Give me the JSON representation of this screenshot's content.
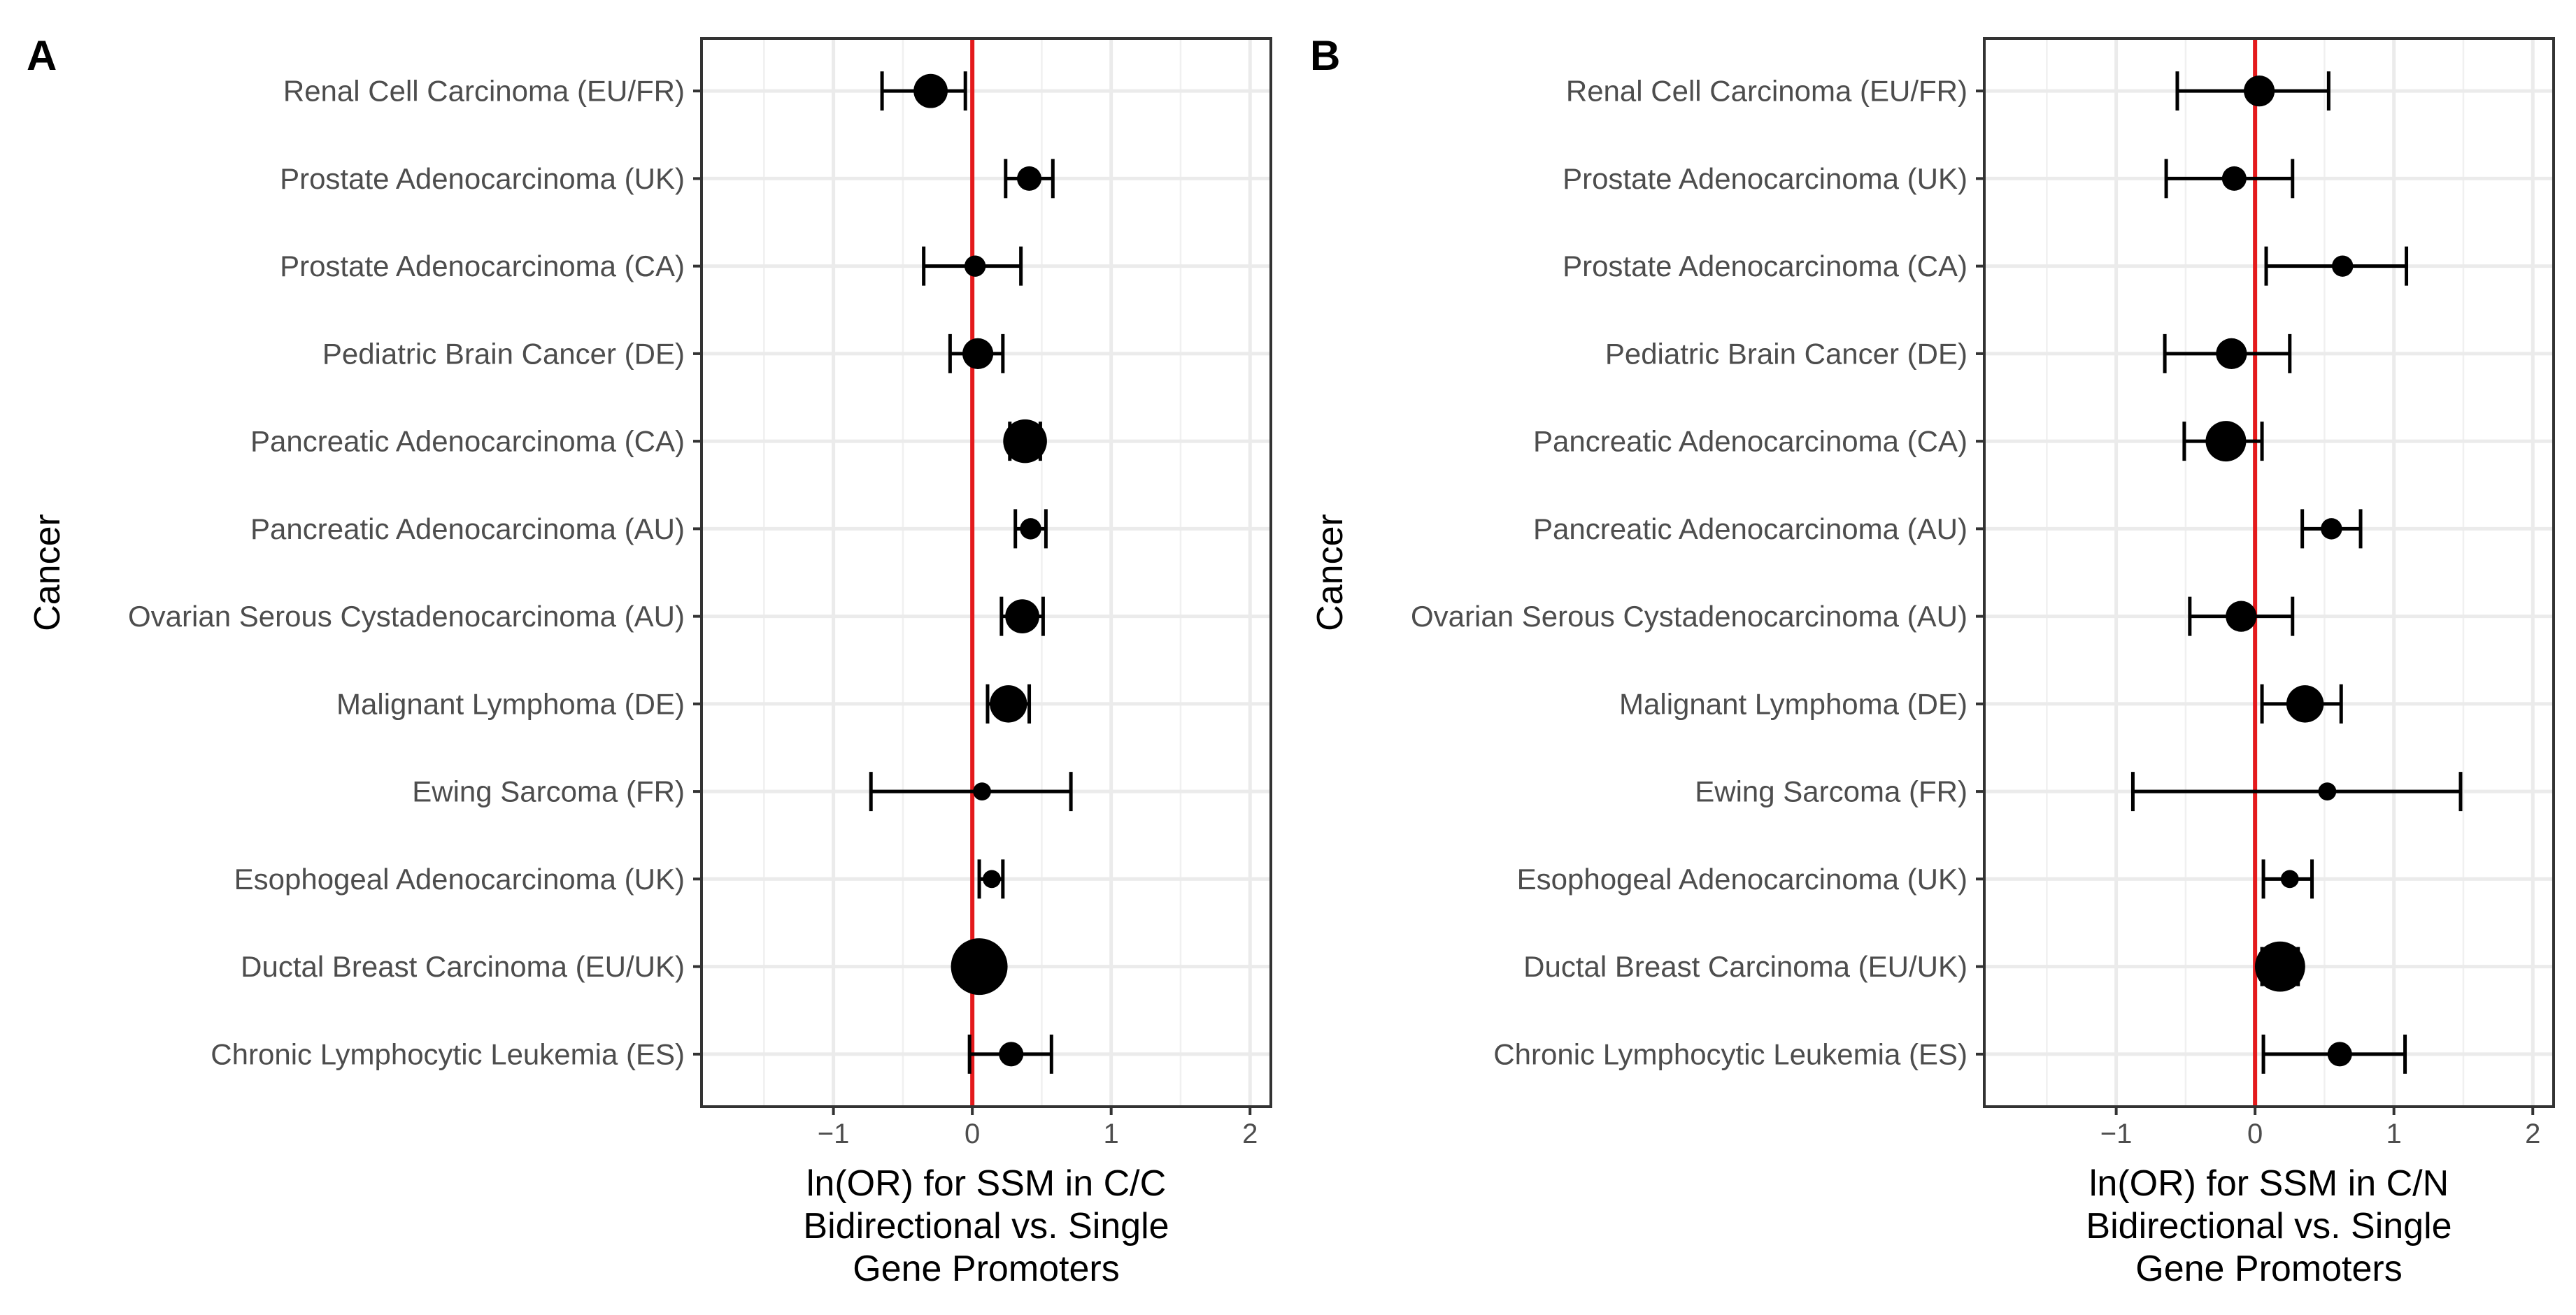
{
  "chart_data": [
    {
      "type": "scatter",
      "panel": "A",
      "xlabel": [
        "ln(OR) for SSM in C/C",
        "Bidirectional vs. Single",
        "Gene Promoters"
      ],
      "ylabel": "Cancer",
      "xlim": [
        -1.95,
        2.15
      ],
      "xticks": [
        -1,
        0,
        1,
        2
      ],
      "xtick_labels": [
        "−1",
        "0",
        "1",
        "2"
      ],
      "grid": true,
      "reference_line": {
        "x": 0,
        "color": "#e41a1c"
      },
      "categories": [
        "Renal Cell Carcinoma (EU/FR)",
        "Prostate Adenocarcinoma (UK)",
        "Prostate Adenocarcinoma (CA)",
        "Pediatric Brain Cancer (DE)",
        "Pancreatic Adenocarcinoma (CA)",
        "Pancreatic Adenocarcinoma (AU)",
        "Ovarian Serous Cystadenocarcinoma (AU)",
        "Malignant Lymphoma (DE)",
        "Ewing Sarcoma (FR)",
        "Esophogeal Adenocarcinoma (UK)",
        "Ductal Breast Carcinoma (EU/UK)",
        "Chronic Lymphocytic Leukemia (ES)"
      ],
      "estimates": [
        -0.3,
        0.41,
        0.02,
        0.04,
        0.38,
        0.42,
        0.36,
        0.26,
        0.07,
        0.14,
        0.05,
        0.28
      ],
      "ci_low": [
        -0.65,
        0.24,
        -0.35,
        -0.16,
        0.27,
        0.31,
        0.21,
        0.11,
        -0.73,
        0.05,
        -0.04,
        -0.02
      ],
      "ci_high": [
        -0.05,
        0.58,
        0.35,
        0.22,
        0.49,
        0.53,
        0.51,
        0.41,
        0.71,
        0.22,
        0.13,
        0.57
      ],
      "point_size": [
        4,
        2.5,
        2,
        3.5,
        5.5,
        2,
        4,
        4.5,
        1.5,
        1.5,
        7.5,
        2.5
      ]
    },
    {
      "type": "scatter",
      "panel": "B",
      "xlabel": [
        "ln(OR) for SSM in C/N",
        "Bidirectional vs. Single",
        "Gene Promoters"
      ],
      "ylabel": "Cancer",
      "xlim": [
        -1.95,
        2.15
      ],
      "xticks": [
        -1,
        0,
        1,
        2
      ],
      "xtick_labels": [
        "−1",
        "0",
        "1",
        "2"
      ],
      "grid": true,
      "reference_line": {
        "x": 0,
        "color": "#e41a1c"
      },
      "categories": [
        "Renal Cell Carcinoma (EU/FR)",
        "Prostate Adenocarcinoma (UK)",
        "Prostate Adenocarcinoma (CA)",
        "Pediatric Brain Cancer (DE)",
        "Pancreatic Adenocarcinoma (CA)",
        "Pancreatic Adenocarcinoma (AU)",
        "Ovarian Serous Cystadenocarcinoma (AU)",
        "Malignant Lymphoma (DE)",
        "Ewing Sarcoma (FR)",
        "Esophogeal Adenocarcinoma (UK)",
        "Ductal Breast Carcinoma (EU/UK)",
        "Chronic Lymphocytic Leukemia (ES)"
      ],
      "estimates": [
        0.03,
        -0.15,
        0.63,
        -0.17,
        -0.21,
        0.55,
        -0.1,
        0.36,
        0.52,
        0.25,
        0.18,
        0.61
      ],
      "ci_low": [
        -0.56,
        -0.64,
        0.08,
        -0.65,
        -0.51,
        0.34,
        -0.47,
        0.05,
        -0.88,
        0.06,
        0.05,
        0.06
      ],
      "ci_high": [
        0.53,
        0.27,
        1.09,
        0.25,
        0.05,
        0.76,
        0.27,
        0.62,
        1.48,
        0.41,
        0.31,
        1.08
      ],
      "point_size": [
        3.5,
        2.5,
        2,
        3.5,
        5,
        2,
        3.5,
        4.5,
        1.5,
        1.5,
        6.5,
        2.5
      ]
    }
  ]
}
